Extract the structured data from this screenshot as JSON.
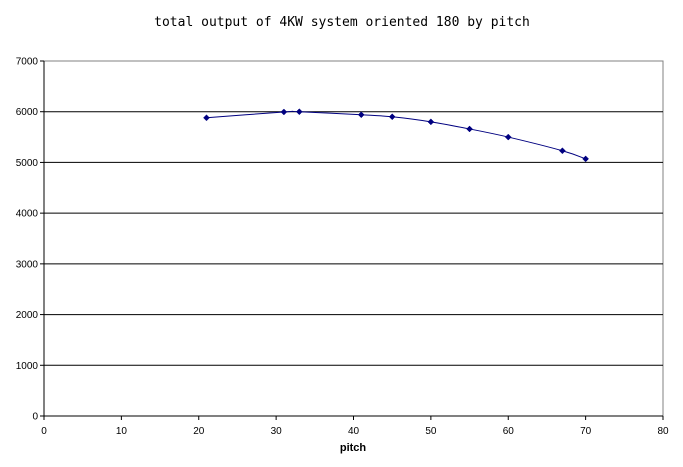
{
  "chart_data": {
    "type": "scatter",
    "title": "total output of 4KW system oriented 180 by pitch",
    "xlabel": "pitch",
    "ylabel": "",
    "xlim": [
      0,
      80
    ],
    "ylim": [
      0,
      7000
    ],
    "x_ticks": [
      0,
      10,
      20,
      30,
      40,
      50,
      60,
      70,
      80
    ],
    "y_ticks": [
      0,
      1000,
      2000,
      3000,
      4000,
      5000,
      6000,
      7000
    ],
    "grid": "horizontal",
    "legend": "none",
    "line_style": "smoothed",
    "series_color": "#000080",
    "series": [
      {
        "name": "",
        "x": [
          21,
          31,
          33,
          41,
          45,
          50,
          55,
          60,
          67,
          70
        ],
        "y": [
          5880,
          5995,
          6000,
          5940,
          5900,
          5800,
          5660,
          5500,
          5230,
          5070
        ]
      }
    ]
  }
}
